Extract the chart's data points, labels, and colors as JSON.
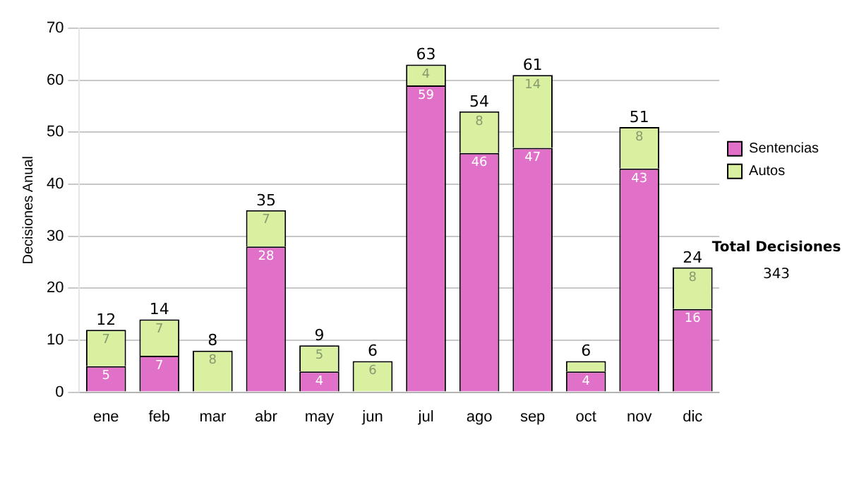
{
  "chart_data": {
    "type": "bar",
    "stacked": true,
    "ylabel": "Decisiones Anual",
    "categories": [
      "ene",
      "feb",
      "mar",
      "abr",
      "may",
      "jun",
      "jul",
      "ago",
      "sep",
      "oct",
      "nov",
      "dic"
    ],
    "series": [
      {
        "name": "Sentencias",
        "color": "#e070c8",
        "values": [
          5,
          7,
          0,
          28,
          4,
          0,
          59,
          46,
          47,
          4,
          43,
          16
        ],
        "value_labels": [
          "5",
          "7",
          null,
          "28",
          "4",
          null,
          "59",
          "46",
          "47",
          "4",
          "43",
          "16"
        ]
      },
      {
        "name": "Autos",
        "color": "#d8f0a0",
        "values": [
          7,
          7,
          8,
          7,
          5,
          6,
          4,
          8,
          14,
          2,
          8,
          8
        ],
        "value_labels": [
          "7",
          "7",
          "8",
          "7",
          "5",
          "6",
          "4",
          "8",
          "14",
          null,
          "8",
          "8"
        ]
      }
    ],
    "totals": [
      "12",
      "14",
      "8",
      "35",
      "9",
      "6",
      "63",
      "54",
      "61",
      "6",
      "51",
      "24"
    ],
    "ylim": [
      0,
      70
    ],
    "yticks": [
      0,
      10,
      20,
      30,
      40,
      50,
      60,
      70
    ],
    "grid": "y",
    "legend": "right",
    "annotations": [
      "Total Decisiones",
      "343"
    ]
  }
}
